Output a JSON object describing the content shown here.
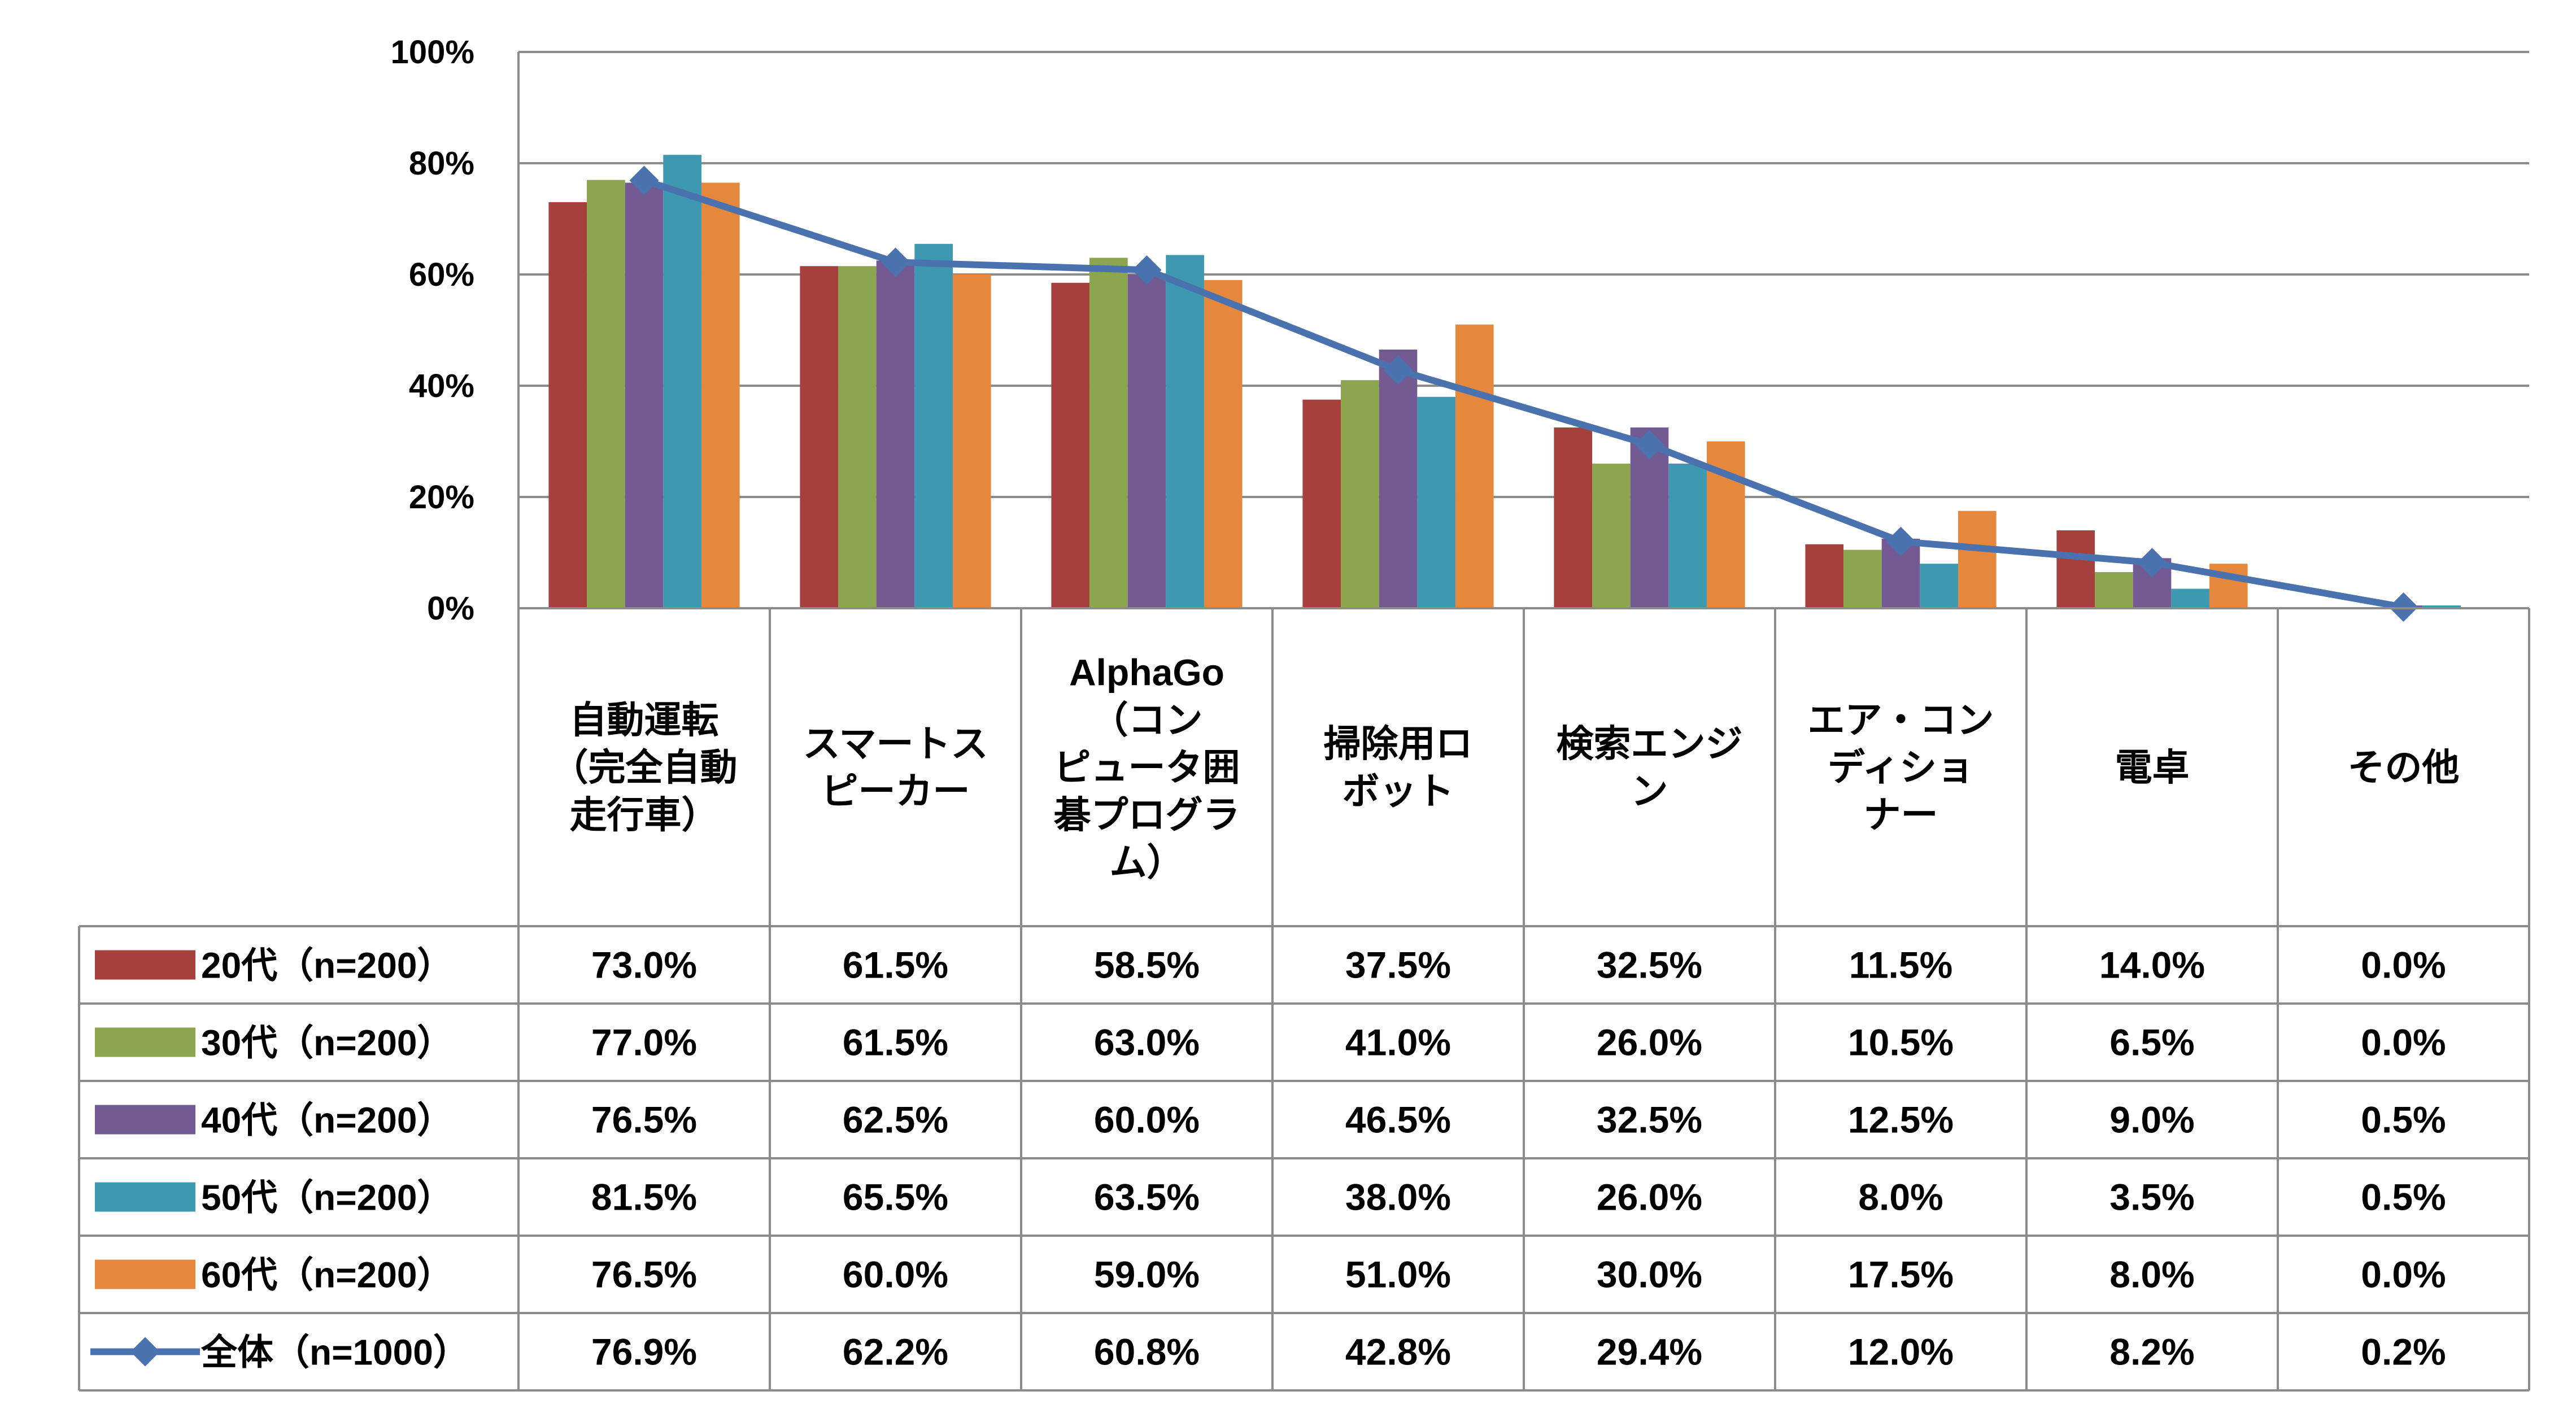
{
  "chart_data": {
    "type": "bar",
    "y_ticks": [
      "0%",
      "20%",
      "40%",
      "60%",
      "80%",
      "100%"
    ],
    "ylim": [
      0,
      100
    ],
    "grid": true,
    "legend": "data-table-left",
    "categories": [
      [
        "自動運転",
        "（完全自動",
        "走行車）"
      ],
      [
        "スマートス",
        "ピーカー"
      ],
      [
        "AlphaGo",
        "（コン",
        "ピュータ囲",
        "碁プログラ",
        "ム）"
      ],
      [
        "掃除用ロ",
        "ボット"
      ],
      [
        "検索エンジ",
        "ン"
      ],
      [
        "エア・コン",
        "ディショ",
        "ナー"
      ],
      [
        "電卓"
      ],
      [
        "その他"
      ]
    ],
    "series": [
      {
        "name": "20代（n=200）",
        "type": "bar",
        "color": "#A5403D",
        "values": [
          73.0,
          61.5,
          58.5,
          37.5,
          32.5,
          11.5,
          14.0,
          0.0
        ],
        "labels": [
          "73.0%",
          "61.5%",
          "58.5%",
          "37.5%",
          "32.5%",
          "11.5%",
          "14.0%",
          "0.0%"
        ]
      },
      {
        "name": "30代（n=200）",
        "type": "bar",
        "color": "#8CA54F",
        "values": [
          77.0,
          61.5,
          63.0,
          41.0,
          26.0,
          10.5,
          6.5,
          0.0
        ],
        "labels": [
          "77.0%",
          "61.5%",
          "63.0%",
          "41.0%",
          "26.0%",
          "10.5%",
          "6.5%",
          "0.0%"
        ]
      },
      {
        "name": "40代（n=200）",
        "type": "bar",
        "color": "#735A93",
        "values": [
          76.5,
          62.5,
          60.0,
          46.5,
          32.5,
          12.5,
          9.0,
          0.5
        ],
        "labels": [
          "76.5%",
          "62.5%",
          "60.0%",
          "46.5%",
          "32.5%",
          "12.5%",
          "9.0%",
          "0.5%"
        ]
      },
      {
        "name": "50代（n=200）",
        "type": "bar",
        "color": "#3D98B0",
        "values": [
          81.5,
          65.5,
          63.5,
          38.0,
          26.0,
          8.0,
          3.5,
          0.5
        ],
        "labels": [
          "81.5%",
          "65.5%",
          "63.5%",
          "38.0%",
          "26.0%",
          "8.0%",
          "3.5%",
          "0.5%"
        ]
      },
      {
        "name": "60代（n=200）",
        "type": "bar",
        "color": "#E5883E",
        "values": [
          76.5,
          60.0,
          59.0,
          51.0,
          30.0,
          17.5,
          8.0,
          0.0
        ],
        "labels": [
          "76.5%",
          "60.0%",
          "59.0%",
          "51.0%",
          "30.0%",
          "17.5%",
          "8.0%",
          "0.0%"
        ]
      },
      {
        "name": "全体（n=1000）",
        "type": "line",
        "marker": "diamond",
        "color": "#4A72AF",
        "values": [
          76.9,
          62.2,
          60.8,
          42.8,
          29.4,
          12.0,
          8.2,
          0.2
        ],
        "labels": [
          "76.9%",
          "62.2%",
          "60.8%",
          "42.8%",
          "29.4%",
          "12.0%",
          "8.2%",
          "0.2%"
        ]
      }
    ]
  }
}
